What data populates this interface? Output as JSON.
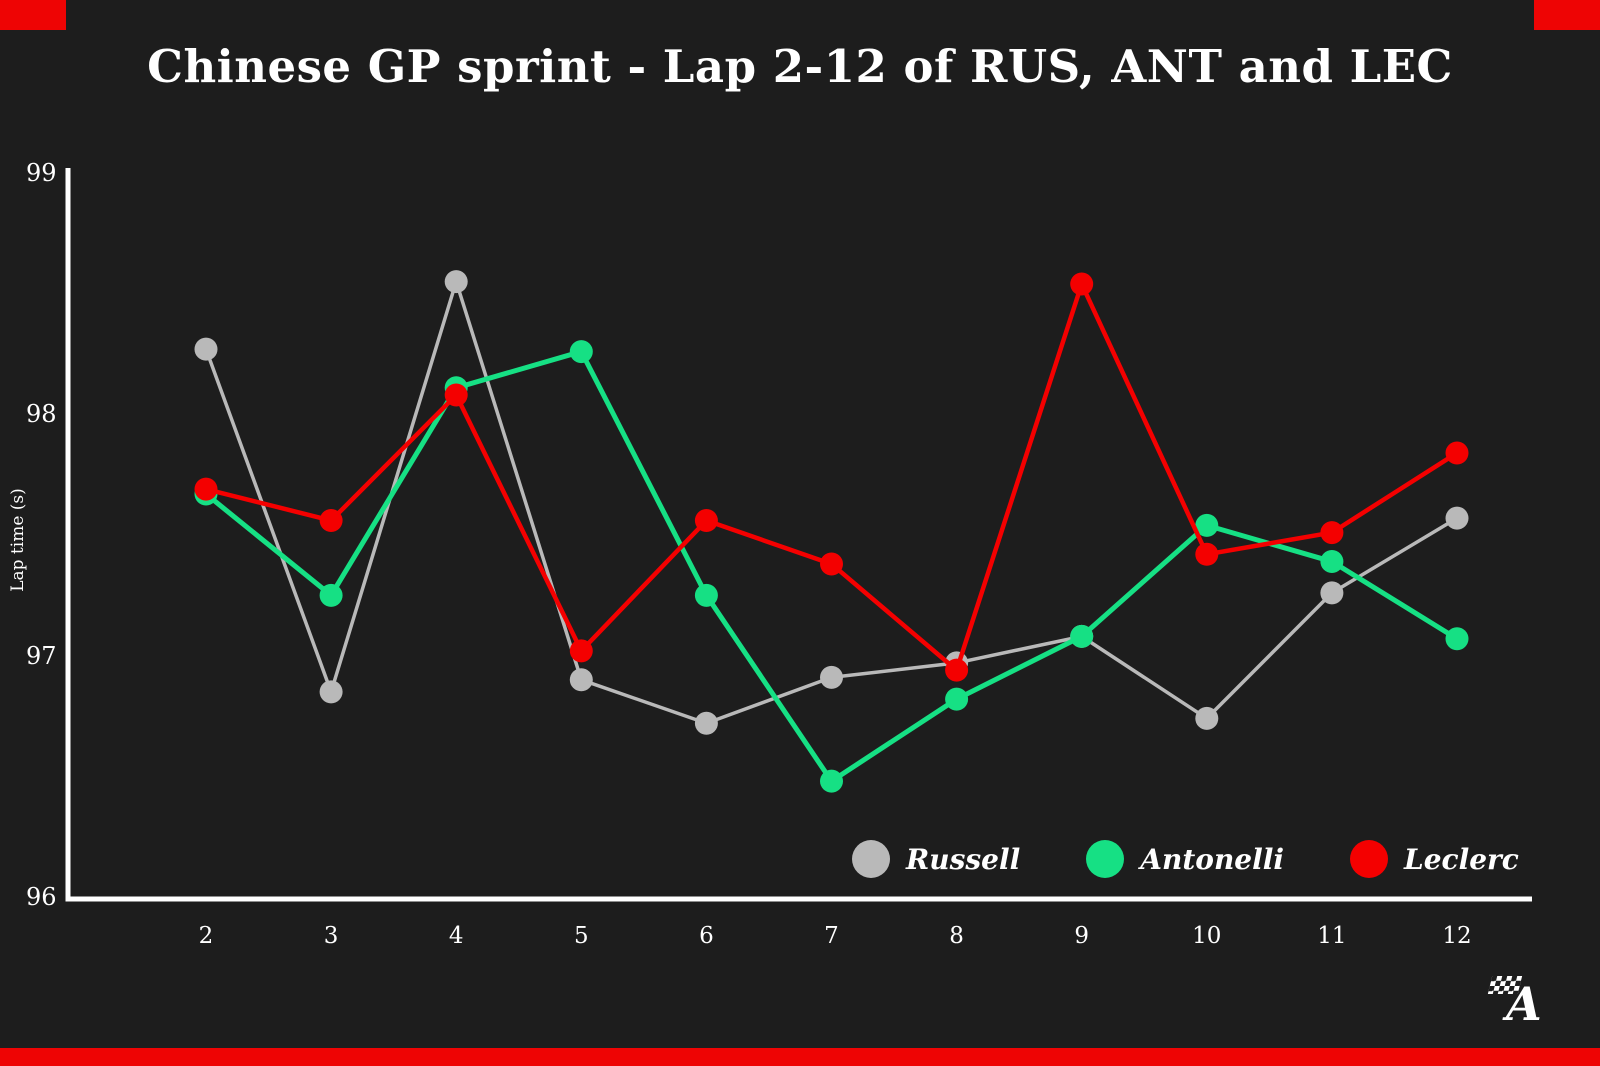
{
  "page": {
    "colors": {
      "background": "#1d1d1d",
      "accent_red": "#ee0404",
      "axis": "#ffffff",
      "text": "#ffffff"
    }
  },
  "chart_data": {
    "type": "line",
    "title": "Chinese GP sprint - Lap 2-12 of RUS, ANT and LEC",
    "xlabel": "",
    "ylabel": "Lap time (s)",
    "x": [
      2,
      3,
      4,
      5,
      6,
      7,
      8,
      9,
      10,
      11,
      12
    ],
    "ylim": [
      96,
      99
    ],
    "yticks": [
      96,
      97,
      98,
      99
    ],
    "grid": false,
    "legend_position": "bottom-right",
    "series": [
      {
        "name": "Russell",
        "color": "#b9b9b9",
        "values": [
          98.27,
          96.85,
          98.55,
          96.9,
          96.72,
          96.91,
          96.97,
          97.08,
          96.74,
          97.26,
          97.57
        ]
      },
      {
        "name": "Antonelli",
        "color": "#16e084",
        "values": [
          97.67,
          97.25,
          98.11,
          98.26,
          97.25,
          96.48,
          96.82,
          97.08,
          97.54,
          97.39,
          97.07
        ]
      },
      {
        "name": "Leclerc",
        "color": "#f40000",
        "values": [
          97.69,
          97.56,
          98.08,
          97.02,
          97.56,
          97.38,
          96.94,
          98.54,
          97.42,
          97.51,
          97.84
        ]
      }
    ]
  },
  "branding": {
    "logo_letter": "A"
  }
}
